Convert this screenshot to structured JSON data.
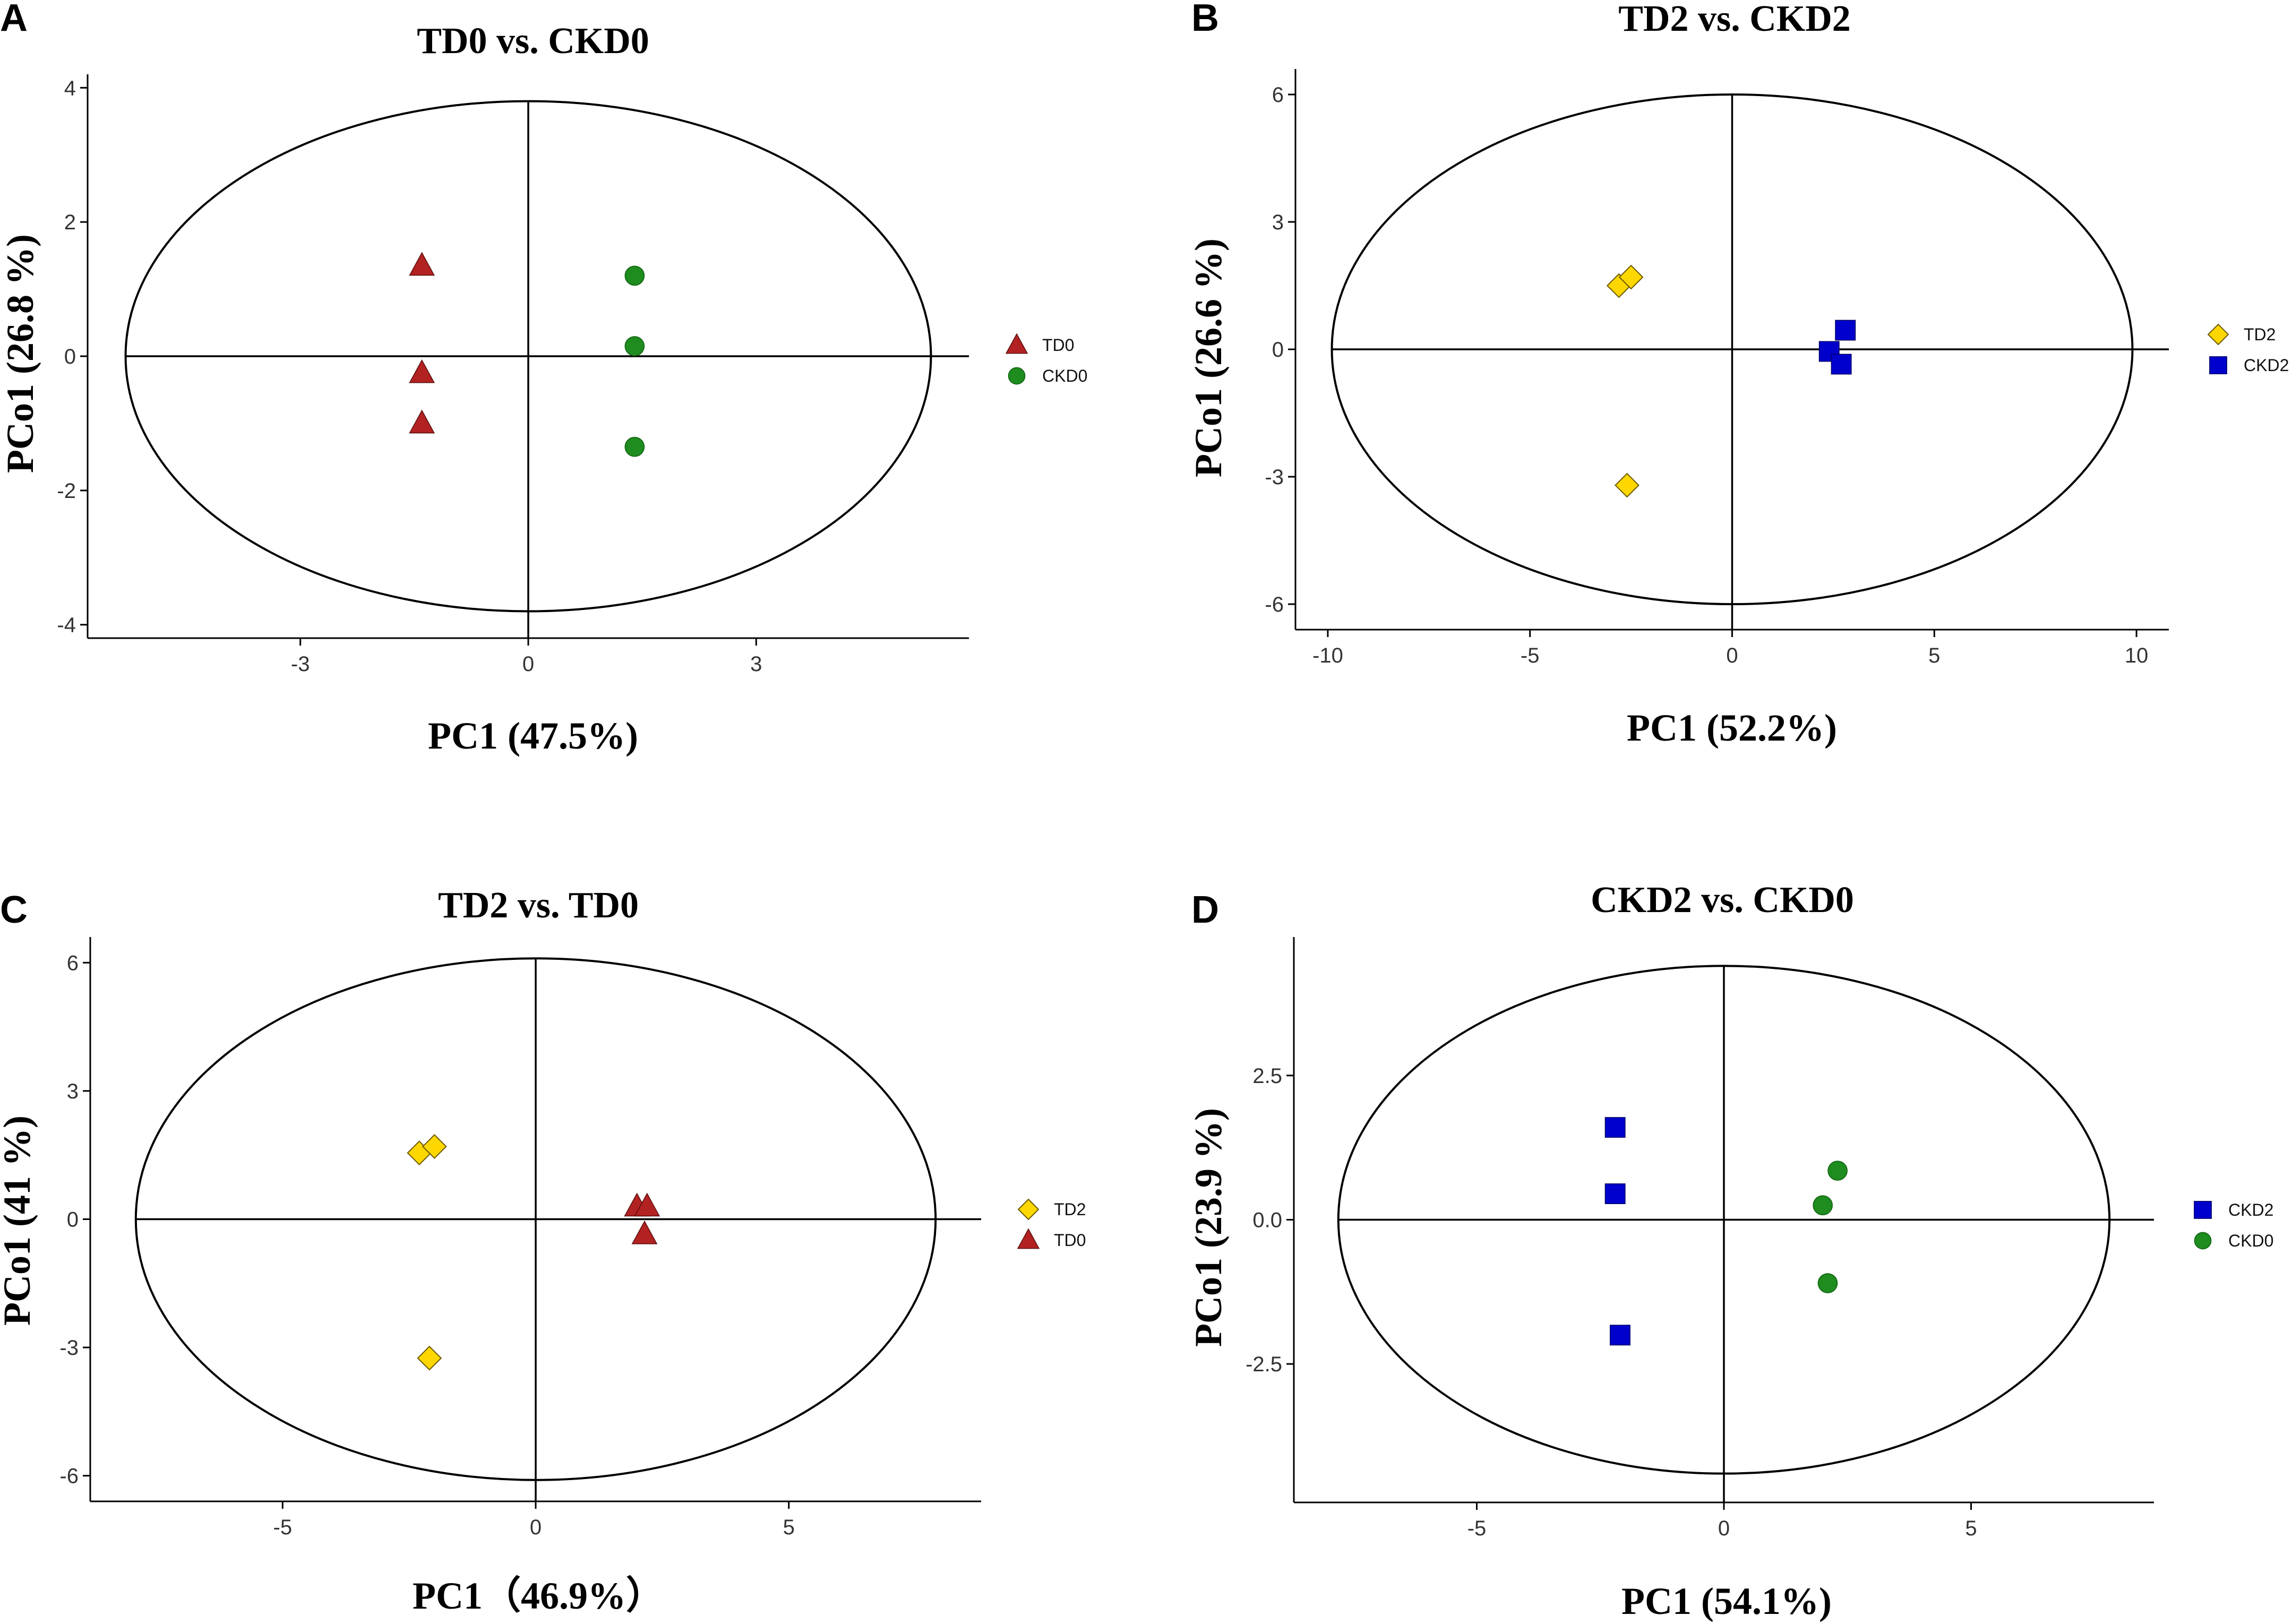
{
  "figure": {
    "panels": [
      "A",
      "B",
      "C",
      "D"
    ]
  },
  "colors": {
    "TD0": "#b22222",
    "CKD0": "#1e8c1e",
    "TD2": "#ffd700",
    "CKD2": "#0000cc"
  },
  "chart_data": [
    {
      "panel": "A",
      "type": "scatter",
      "title": "TD0  vs. CKD0",
      "xlabel": "PC1 (47.5%)",
      "ylabel": "PCo1 (26.8 %)",
      "xlim": [
        -5.8,
        5.8
      ],
      "ylim": [
        -4.2,
        4.2
      ],
      "xticks": [
        -3,
        0,
        3
      ],
      "xtick_labels": [
        "-3",
        "0",
        "3"
      ],
      "yticks": [
        -4,
        -2,
        0,
        2,
        4
      ],
      "ytick_labels": [
        "-4",
        "-2",
        "0",
        "2",
        "4"
      ],
      "ellipse": {
        "rx": 5.3,
        "ry": 3.8
      },
      "legend": [
        "TD0",
        "CKD0"
      ],
      "series": [
        {
          "name": "TD0",
          "marker": "triangle",
          "color": "#b22222",
          "x": [
            -1.4,
            -1.4,
            -1.4
          ],
          "y": [
            1.35,
            -0.25,
            -1.0
          ]
        },
        {
          "name": "CKD0",
          "marker": "circle",
          "color": "#1e8c1e",
          "x": [
            1.4,
            1.4,
            1.4
          ],
          "y": [
            1.2,
            0.15,
            -1.35
          ]
        }
      ]
    },
    {
      "panel": "B",
      "type": "scatter",
      "title": "TD2  vs. CKD2",
      "xlabel": "PC1 (52.2%)",
      "ylabel": "PCo1 (26.6 %)",
      "xlim": [
        -10.8,
        10.8
      ],
      "ylim": [
        -6.6,
        6.6
      ],
      "xticks": [
        -10,
        -5,
        0,
        5,
        10
      ],
      "xtick_labels": [
        "-10",
        "-5",
        "0",
        "5",
        "10"
      ],
      "yticks": [
        -6,
        -3,
        0,
        3,
        6
      ],
      "ytick_labels": [
        "-6",
        "-3",
        "0",
        "3",
        "6"
      ],
      "ellipse": {
        "rx": 9.9,
        "ry": 6.0
      },
      "legend": [
        "TD2",
        "CKD2"
      ],
      "series": [
        {
          "name": "TD2",
          "marker": "diamond",
          "color": "#ffd700",
          "x": [
            -2.8,
            -2.5,
            -2.6
          ],
          "y": [
            1.5,
            1.7,
            -3.2
          ]
        },
        {
          "name": "CKD2",
          "marker": "square",
          "color": "#0000cc",
          "x": [
            2.8,
            2.4,
            2.7
          ],
          "y": [
            0.45,
            -0.05,
            -0.35
          ]
        }
      ]
    },
    {
      "panel": "C",
      "type": "scatter",
      "title": "TD2  vs. TD0",
      "xlabel": "PC1（46.9%）",
      "ylabel": "PCo1 (41 %)",
      "xlim": [
        -8.8,
        8.8
      ],
      "ylim": [
        -6.6,
        6.6
      ],
      "xticks": [
        -5,
        0,
        5
      ],
      "xtick_labels": [
        "-5",
        "0",
        "5"
      ],
      "yticks": [
        -6,
        -3,
        0,
        3,
        6
      ],
      "ytick_labels": [
        "-6",
        "-3",
        "0",
        "3",
        "6"
      ],
      "ellipse": {
        "rx": 7.9,
        "ry": 6.1
      },
      "legend": [
        "TD2",
        "TD0"
      ],
      "series": [
        {
          "name": "TD2",
          "marker": "diamond",
          "color": "#ffd700",
          "x": [
            -2.3,
            -2.0,
            -2.1
          ],
          "y": [
            1.55,
            1.7,
            -3.25
          ]
        },
        {
          "name": "TD0",
          "marker": "triangle",
          "color": "#b22222",
          "x": [
            2.0,
            2.2,
            2.15
          ],
          "y": [
            0.3,
            0.3,
            -0.35
          ]
        }
      ]
    },
    {
      "panel": "D",
      "type": "scatter",
      "title": "CKD2  vs. CKD0",
      "xlabel": "PC1 (54.1%)",
      "ylabel": "PCo1 (23.9 %)",
      "xlim": [
        -8.7,
        8.7
      ],
      "ylim": [
        -4.9,
        4.9
      ],
      "xticks": [
        -5,
        0,
        5
      ],
      "xtick_labels": [
        "-5",
        "0",
        "5"
      ],
      "yticks": [
        -2.5,
        0,
        2.5
      ],
      "ytick_labels": [
        "-2.5",
        "0.0",
        "2.5"
      ],
      "ellipse": {
        "rx": 7.8,
        "ry": 4.4
      },
      "legend": [
        "CKD2",
        "CKD0"
      ],
      "series": [
        {
          "name": "CKD2",
          "marker": "square",
          "color": "#0000cc",
          "x": [
            -2.2,
            -2.2,
            -2.1
          ],
          "y": [
            1.6,
            0.45,
            -2.0
          ]
        },
        {
          "name": "CKD0",
          "marker": "circle",
          "color": "#1e8c1e",
          "x": [
            2.3,
            2.0,
            2.1
          ],
          "y": [
            0.85,
            0.25,
            -1.1
          ]
        }
      ]
    }
  ]
}
